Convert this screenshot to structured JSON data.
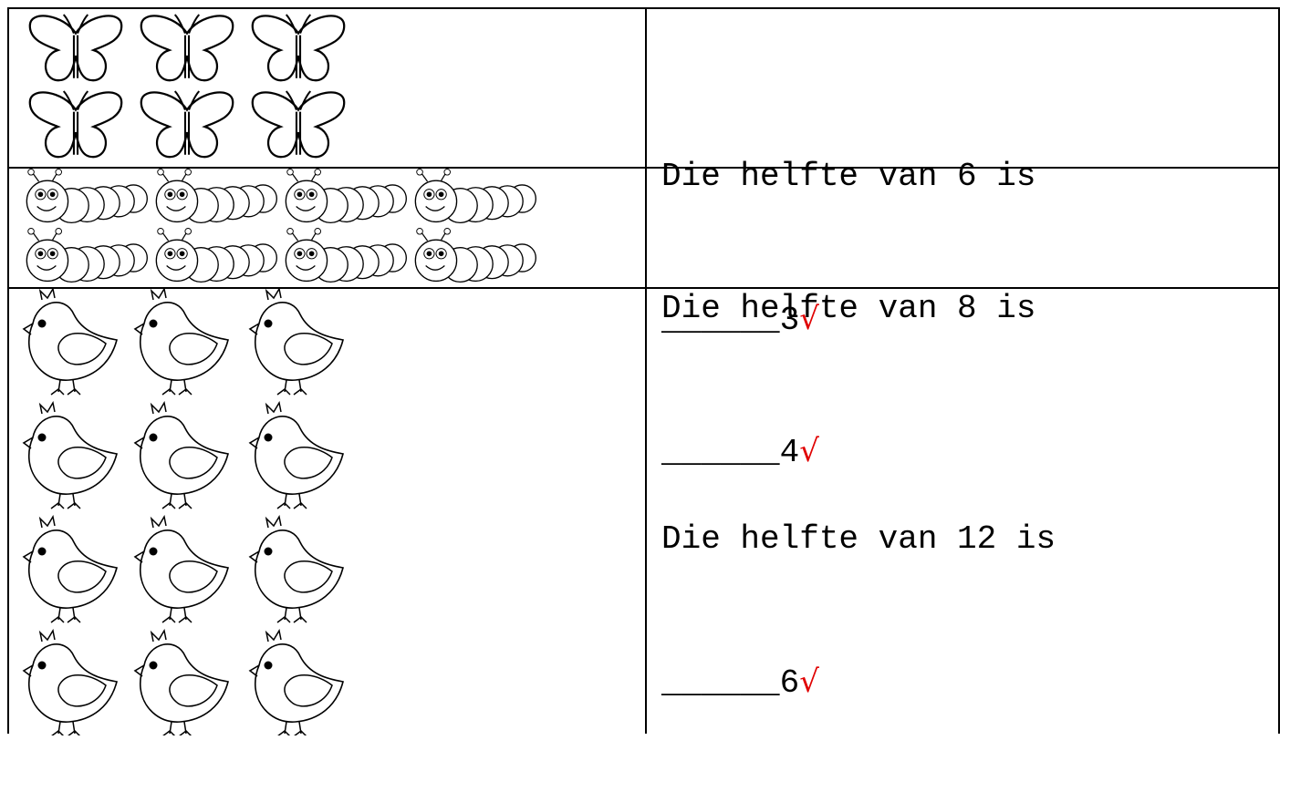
{
  "rows": [
    {
      "question": "Die helfte van 6 is",
      "blank": "______",
      "answer": "3",
      "check": "√"
    },
    {
      "question": "Die helfte van 8 is",
      "blank": "______",
      "answer": "4",
      "check": "√"
    },
    {
      "question": "Die helfte van 12 is",
      "blank": "______",
      "answer": "6",
      "check": "√"
    }
  ]
}
